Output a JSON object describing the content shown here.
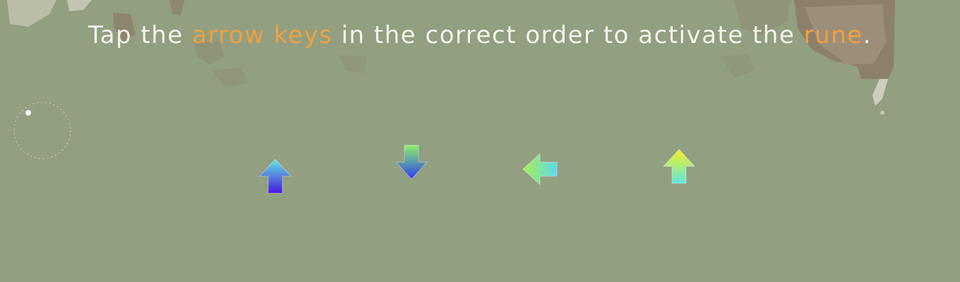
{
  "instruction": {
    "prefix": "Tap the",
    "highlight1": "arrow keys",
    "middle": "in the correct order to activate the",
    "highlight2": "rune",
    "suffix": "."
  },
  "arrow_sequence": [
    {
      "direction": "up",
      "icon": "arrow-up-icon",
      "gradient_top": "#63e6e0",
      "gradient_bottom": "#4a18e0"
    },
    {
      "direction": "down",
      "icon": "arrow-down-icon",
      "gradient_top": "#2a3ef0",
      "gradient_bottom": "#8af06a"
    },
    {
      "direction": "left",
      "icon": "arrow-left-icon",
      "gradient_top": "#a8f050",
      "gradient_bottom": "#5cd8f0"
    },
    {
      "direction": "up",
      "icon": "arrow-up-icon",
      "gradient_top": "#f6f020",
      "gradient_bottom": "#5ee8e0"
    }
  ],
  "colors": {
    "background": "#929f80",
    "text": "#f4f4ee",
    "highlight": "#f0a040"
  }
}
